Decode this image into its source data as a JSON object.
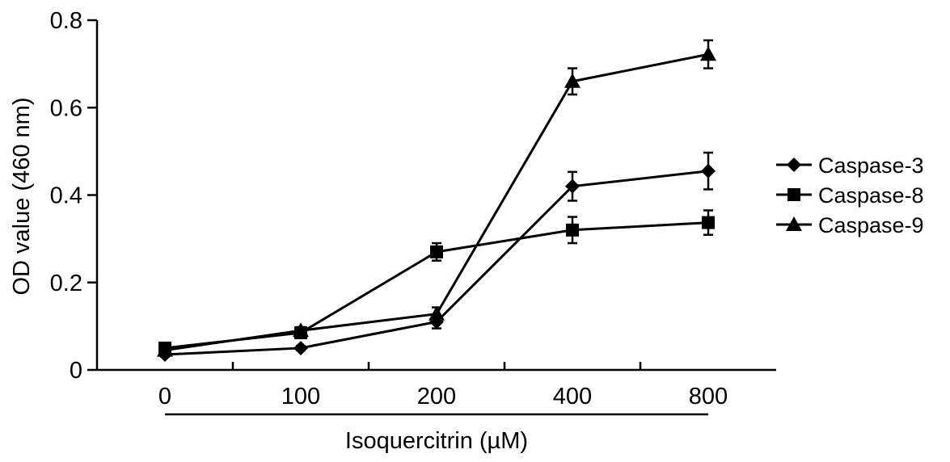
{
  "chart_data": {
    "type": "line",
    "categories": [
      "0",
      "100",
      "200",
      "400",
      "800"
    ],
    "ylabel": "OD value (460 nm)",
    "xlabel": "Isoquercitrin (µM)",
    "ylim": [
      0,
      0.8
    ],
    "yticks": [
      "0",
      "0.2",
      "0.4",
      "0.6",
      "0.8"
    ],
    "legend_position": "right",
    "series": [
      {
        "name": "Caspase-3",
        "marker": "diamond",
        "values": [
          0.035,
          0.05,
          0.11,
          0.42,
          0.455
        ],
        "errors": [
          0.005,
          0.005,
          0.015,
          0.033,
          0.042
        ]
      },
      {
        "name": "Caspase-8",
        "marker": "square",
        "values": [
          0.05,
          0.085,
          0.27,
          0.32,
          0.337
        ],
        "errors": [
          0.005,
          0.01,
          0.02,
          0.03,
          0.028
        ]
      },
      {
        "name": "Caspase-9",
        "marker": "triangle",
        "values": [
          0.045,
          0.09,
          0.128,
          0.66,
          0.722
        ],
        "errors": [
          0.005,
          0.008,
          0.015,
          0.03,
          0.032
        ]
      }
    ]
  }
}
